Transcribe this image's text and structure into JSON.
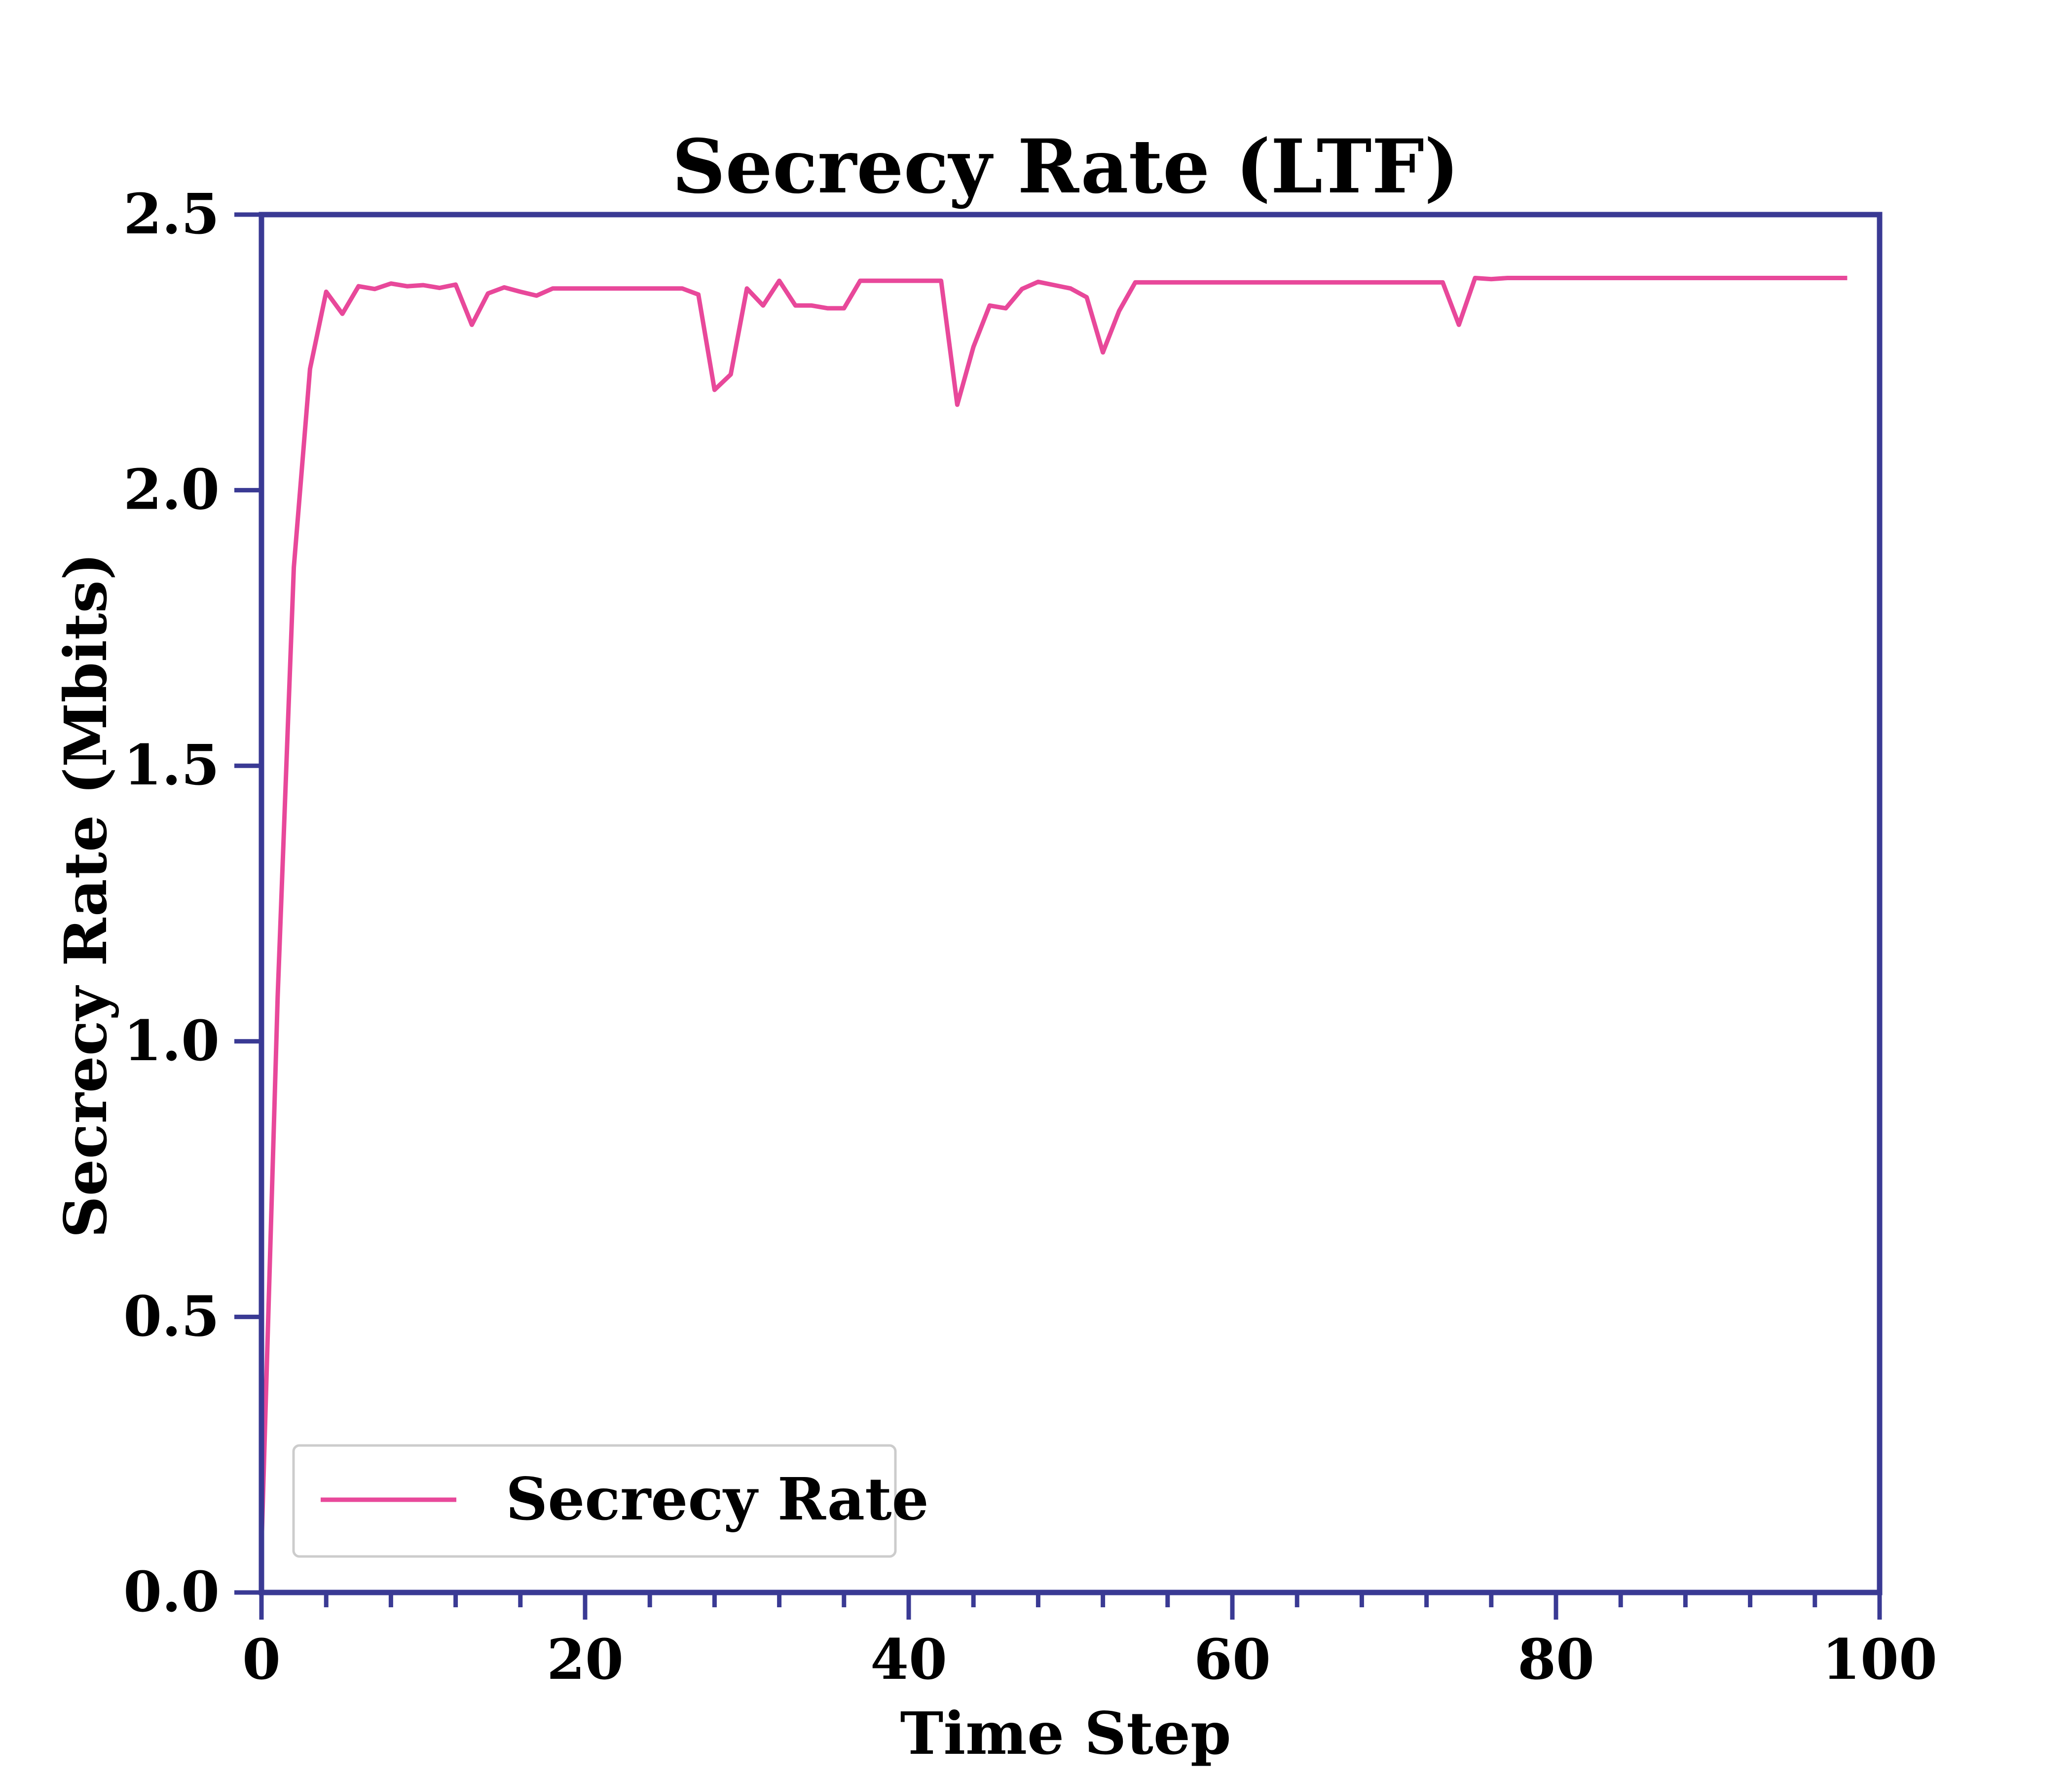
{
  "chart_data": {
    "type": "line",
    "title": "Secrecy Rate (LTF)",
    "xlabel": "Time Step",
    "ylabel": "Secrecy Rate (Mbits)",
    "xlim": [
      0,
      100
    ],
    "ylim": [
      0,
      2.5
    ],
    "xticks": [
      "0",
      "20",
      "40",
      "60",
      "80",
      "100"
    ],
    "yticks": [
      "0.0",
      "0.5",
      "1.0",
      "1.5",
      "2.0",
      "2.5"
    ],
    "grid": false,
    "legend_position": "lower-left",
    "colors": {
      "axis": "#3a3a94",
      "series": "#e8489a",
      "legend_border": "#cccccc"
    },
    "series": [
      {
        "name": "Secrecy Rate",
        "x": [
          0,
          1,
          2,
          3,
          4,
          5,
          6,
          7,
          8,
          9,
          10,
          11,
          12,
          13,
          14,
          15,
          16,
          17,
          18,
          19,
          20,
          21,
          22,
          23,
          24,
          25,
          26,
          27,
          28,
          29,
          30,
          31,
          32,
          33,
          34,
          35,
          36,
          37,
          38,
          39,
          40,
          41,
          42,
          43,
          44,
          45,
          46,
          47,
          48,
          49,
          50,
          51,
          52,
          53,
          54,
          55,
          56,
          57,
          58,
          59,
          60,
          61,
          62,
          63,
          64,
          65,
          66,
          67,
          68,
          69,
          70,
          71,
          72,
          73,
          74,
          75,
          76,
          77,
          78,
          79,
          80,
          81,
          82,
          83,
          84,
          85,
          86,
          87,
          88,
          89,
          90,
          91,
          92,
          93,
          94,
          95,
          96,
          97,
          98
        ],
        "values": [
          0.08,
          1.08,
          1.86,
          2.22,
          2.36,
          2.32,
          2.37,
          2.365,
          2.375,
          2.37,
          2.372,
          2.367,
          2.373,
          2.3,
          2.357,
          2.368,
          2.36,
          2.353,
          2.366,
          2.366,
          2.366,
          2.366,
          2.366,
          2.366,
          2.366,
          2.366,
          2.366,
          2.355,
          2.182,
          2.21,
          2.366,
          2.335,
          2.38,
          2.335,
          2.335,
          2.33,
          2.33,
          2.38,
          2.38,
          2.38,
          2.38,
          2.38,
          2.38,
          2.155,
          2.26,
          2.335,
          2.33,
          2.365,
          2.378,
          2.372,
          2.366,
          2.35,
          2.25,
          2.325,
          2.377,
          2.377,
          2.377,
          2.377,
          2.377,
          2.377,
          2.377,
          2.377,
          2.377,
          2.377,
          2.377,
          2.377,
          2.377,
          2.377,
          2.377,
          2.377,
          2.377,
          2.377,
          2.377,
          2.377,
          2.3,
          2.385,
          2.383,
          2.385,
          2.385,
          2.385,
          2.385,
          2.385,
          2.385,
          2.385,
          2.385,
          2.385,
          2.385,
          2.385,
          2.385,
          2.385,
          2.385,
          2.385,
          2.385,
          2.385,
          2.385,
          2.385,
          2.385,
          2.385,
          2.385
        ]
      }
    ]
  }
}
